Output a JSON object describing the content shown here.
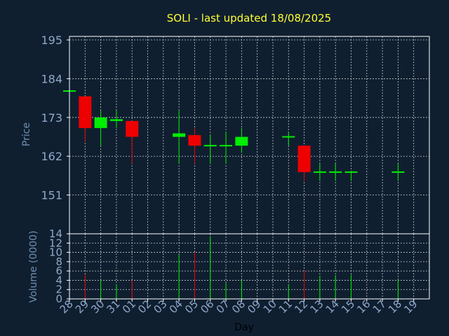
{
  "colors": {
    "background": "#0f1f30",
    "frame": "#ffffff",
    "grid": "#c8c8c8",
    "title": "#ffff33",
    "axis_label": "#6f8fb0",
    "tick_label": "#8fa8c8",
    "up": "#00ee00",
    "down": "#ee0000",
    "xlabel": "#000000"
  },
  "chart_data": [
    {
      "type": "candlestick",
      "title": "SOLI - last updated 18/08/2025",
      "ylabel": "Price",
      "ylim": [
        140,
        196
      ],
      "yticks": [
        151,
        162,
        173,
        184,
        195
      ],
      "grid": true,
      "x": [
        "28",
        "29",
        "30",
        "31",
        "01",
        "02",
        "03",
        "04",
        "05",
        "06",
        "07",
        "08",
        "09",
        "10",
        "11",
        "12",
        "13",
        "14",
        "15",
        "16",
        "17",
        "18",
        "19"
      ],
      "candles": [
        {
          "day": "28",
          "open": 180.5,
          "close": 180.5,
          "high": 180.5,
          "low": 180.5
        },
        {
          "day": "29",
          "open": 179,
          "close": 170,
          "high": 179,
          "low": 166
        },
        {
          "day": "30",
          "open": 170,
          "close": 173,
          "high": 175,
          "low": 165
        },
        {
          "day": "31",
          "open": 172,
          "close": 172.5,
          "high": 175,
          "low": 170
        },
        {
          "day": "01",
          "open": 172,
          "close": 167.5,
          "high": 172,
          "low": 160
        },
        {
          "day": "04",
          "open": 167.5,
          "close": 168.5,
          "high": 175,
          "low": 160
        },
        {
          "day": "05",
          "open": 168,
          "close": 165,
          "high": 170,
          "low": 160
        },
        {
          "day": "06",
          "open": 165,
          "close": 165,
          "high": 168,
          "low": 160
        },
        {
          "day": "07",
          "open": 165,
          "close": 165,
          "high": 169,
          "low": 160
        },
        {
          "day": "08",
          "open": 165,
          "close": 167.5,
          "high": 170,
          "low": 163
        },
        {
          "day": "11",
          "open": 167.5,
          "close": 167.5,
          "high": 169,
          "low": 165
        },
        {
          "day": "12",
          "open": 165,
          "close": 157.5,
          "high": 165,
          "low": 155
        },
        {
          "day": "13",
          "open": 157.5,
          "close": 157.5,
          "high": 160,
          "low": 155
        },
        {
          "day": "14",
          "open": 157.5,
          "close": 157.5,
          "high": 160,
          "low": 155
        },
        {
          "day": "15",
          "open": 157.5,
          "close": 157.5,
          "high": 157.5,
          "low": 155
        },
        {
          "day": "18",
          "open": 157.5,
          "close": 157.5,
          "high": 160,
          "low": 155
        }
      ]
    },
    {
      "type": "bar",
      "ylabel": "Volume (0000)",
      "xlabel": "Day",
      "ylim": [
        0,
        14
      ],
      "yticks": [
        0,
        2,
        4,
        6,
        8,
        10,
        12,
        14
      ],
      "grid": true,
      "categories": [
        "29",
        "30",
        "31",
        "01",
        "04",
        "05",
        "06",
        "07",
        "08",
        "11",
        "12",
        "13",
        "14",
        "15",
        "18"
      ],
      "values": [
        5.2,
        4.2,
        3.1,
        4.0,
        9.6,
        10.1,
        13.5,
        3.4,
        4.0,
        3.1,
        6.1,
        5.0,
        5.1,
        5.2,
        4.2
      ],
      "directions": [
        "down",
        "up",
        "up",
        "down",
        "up",
        "down",
        "up",
        "up",
        "up",
        "up",
        "down",
        "up",
        "up",
        "up",
        "up"
      ]
    }
  ]
}
